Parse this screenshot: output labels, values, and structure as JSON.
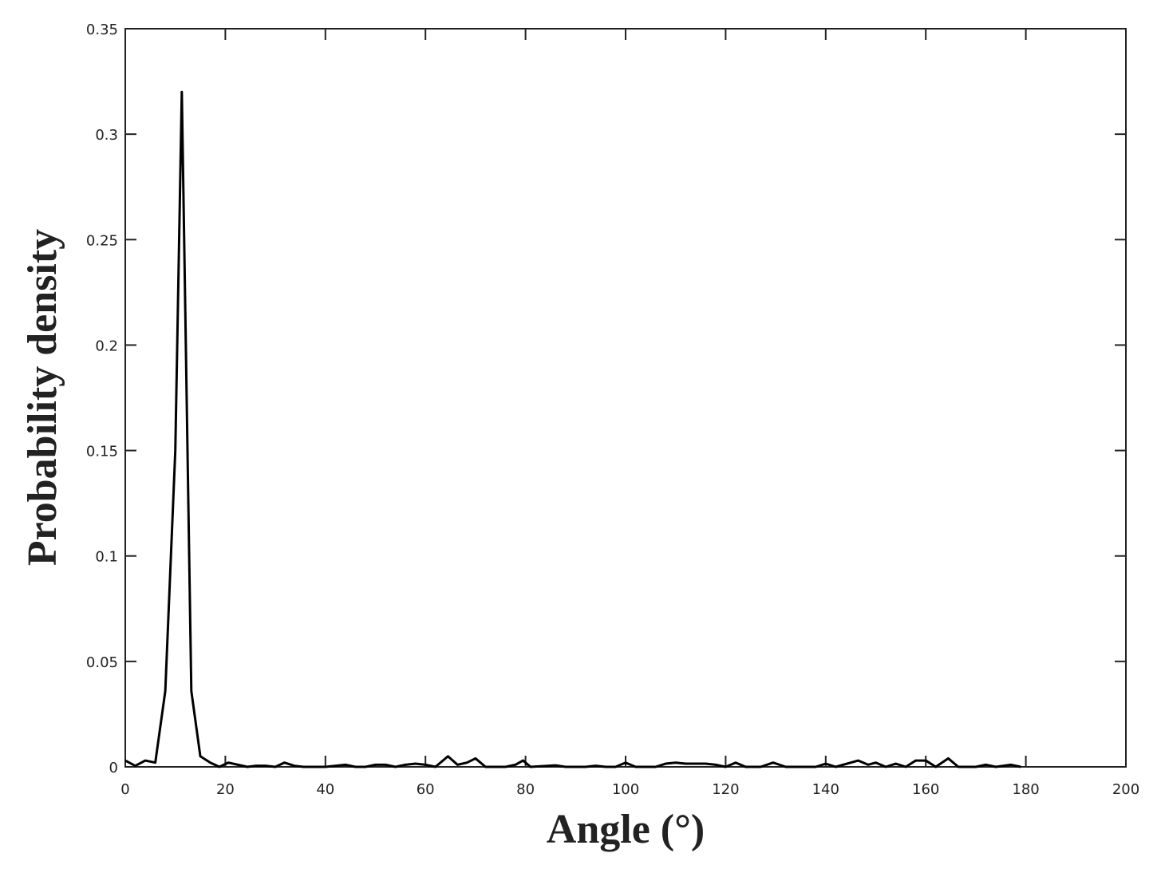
{
  "chart_data": {
    "type": "line",
    "x_label": "Angle (°)",
    "y_label": "Probability density",
    "xlim": [
      0,
      200
    ],
    "xticks": [
      0,
      20,
      40,
      60,
      80,
      100,
      120,
      140,
      160,
      180,
      200
    ],
    "ylim": [
      0,
      0.35
    ],
    "yticks": [
      0,
      0.05,
      0.1,
      0.15,
      0.2,
      0.25,
      0.3,
      0.35
    ],
    "series": [
      {
        "color": "#000000",
        "x": [
          0,
          2,
          4,
          6,
          8,
          10,
          11.3,
          13.2,
          15,
          17,
          18.8,
          20.6,
          22.5,
          24.4,
          26,
          28,
          30,
          31.8,
          33.8,
          35.6,
          40,
          44,
          46,
          48,
          50,
          52,
          54,
          56,
          58,
          60,
          62,
          64.5,
          66.4,
          68.3,
          70,
          72,
          76,
          78,
          79.5,
          81,
          86,
          88,
          92,
          94,
          96,
          98,
          100,
          102,
          106,
          108,
          110,
          112,
          114,
          116,
          118,
          120,
          122,
          124,
          127,
          129.5,
          132,
          138,
          140,
          142,
          146.5,
          148.5,
          150,
          152,
          154,
          156,
          158,
          160,
          162,
          164.5,
          166.5,
          170,
          172,
          174,
          177,
          179
        ],
        "values": [
          0.003,
          0.0005,
          0.003,
          0.002,
          0.036,
          0.15,
          0.32,
          0.036,
          0.005,
          0.002,
          0,
          0.002,
          0.001,
          0,
          0.0005,
          0.0005,
          0,
          0.002,
          0.0005,
          0,
          0,
          0.001,
          0,
          0,
          0.001,
          0.001,
          0,
          0.001,
          0.0015,
          0.001,
          0,
          0.005,
          0.001,
          0.002,
          0.004,
          0,
          0,
          0.001,
          0.003,
          0,
          0.0007,
          0,
          0,
          0.0005,
          0,
          0,
          0.002,
          0,
          0,
          0.0015,
          0.002,
          0.0015,
          0.0015,
          0.0015,
          0.001,
          0,
          0.002,
          0,
          0,
          0.002,
          0,
          0,
          0.0015,
          0,
          0.003,
          0.001,
          0.002,
          0,
          0.0015,
          0,
          0.003,
          0.003,
          0,
          0.004,
          0,
          0,
          0.001,
          0,
          0.001,
          0
        ]
      }
    ]
  }
}
